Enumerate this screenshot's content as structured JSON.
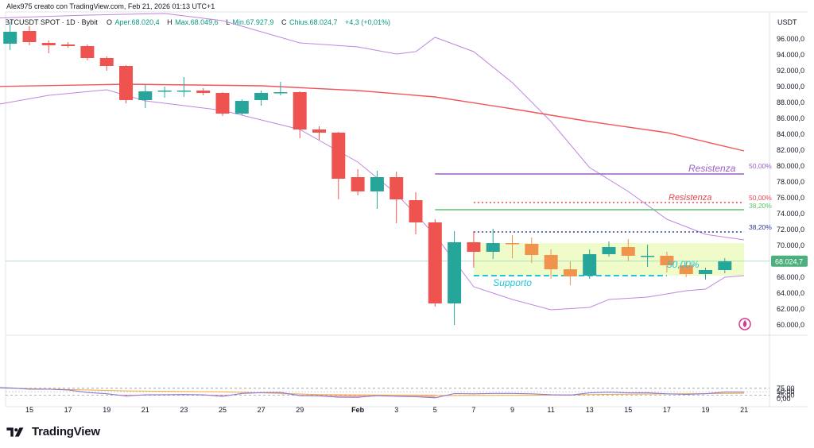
{
  "header": {
    "author_line": "Alex975 creato con TradingView.com, Feb 21, 2026 01:13 UTC+1",
    "symbol_line": "BTCUSDT SPOT · 1D · Bybit",
    "ohlc": [
      {
        "label": "O",
        "value": "Aper.68.020,4"
      },
      {
        "label": "H",
        "value": "Max.68.049,6"
      },
      {
        "label": "L",
        "value": "Min.67.927,9"
      },
      {
        "label": "C",
        "value": "Chius.68.024,7"
      }
    ],
    "change": "+4,3 (+0,01%)",
    "currency": "USDT"
  },
  "brand": {
    "name": "TradingView"
  },
  "colors": {
    "up": "#26a69a",
    "down": "#ef5350",
    "orange": "#f0934d",
    "ma_red": "#f2545b",
    "bollinger": "#c086e0",
    "rsi": "#8a79d6",
    "rsi_ma": "#f7a93b",
    "support_zone": "#eaf9b5",
    "support": "#25c5d9",
    "resist_purple": "#9c5fc4",
    "resist_red": "#e0464e",
    "green_line": "#5cc46a",
    "blue_line": "#2c3d99",
    "axis_text": "#131722",
    "price_badge": "#4caf7d"
  },
  "chart_data": {
    "type": "candlestick",
    "price_axis": {
      "ticks": [
        60000,
        62000,
        64000,
        66000,
        68000,
        70000,
        72000,
        74000,
        76000,
        78000,
        80000,
        82000,
        84000,
        86000,
        88000,
        90000,
        92000,
        94000,
        96000
      ],
      "labels": [
        "60.000,0",
        "62.000,0",
        "64.000,0",
        "66.000,0",
        "68.000,0",
        "70.000,0",
        "72.000,0",
        "74.000,0",
        "76.000,0",
        "78.000,0",
        "80.000,0",
        "82.000,0",
        "84.000,0",
        "86.000,0",
        "88.000,0",
        "90.000,0",
        "92.000,0",
        "94.000,0",
        "96.000,0"
      ],
      "current_price": 68024.7,
      "current_label": "68.024,7"
    },
    "x_axis": {
      "labels": [
        {
          "date": "2026-01-15",
          "text": "15"
        },
        {
          "date": "2026-01-17",
          "text": "17"
        },
        {
          "date": "2026-01-19",
          "text": "19"
        },
        {
          "date": "2026-01-21",
          "text": "21"
        },
        {
          "date": "2026-01-23",
          "text": "23"
        },
        {
          "date": "2026-01-25",
          "text": "25"
        },
        {
          "date": "2026-01-27",
          "text": "27"
        },
        {
          "date": "2026-01-29",
          "text": "29"
        },
        {
          "date": "2026-02-01",
          "text": "Feb"
        },
        {
          "date": "2026-02-03",
          "text": "3"
        },
        {
          "date": "2026-02-05",
          "text": "5"
        },
        {
          "date": "2026-02-07",
          "text": "7"
        },
        {
          "date": "2026-02-09",
          "text": "9"
        },
        {
          "date": "2026-02-11",
          "text": "11"
        },
        {
          "date": "2026-02-13",
          "text": "13"
        },
        {
          "date": "2026-02-15",
          "text": "15"
        },
        {
          "date": "2026-02-17",
          "text": "17"
        },
        {
          "date": "2026-02-19",
          "text": "19"
        },
        {
          "date": "2026-02-21",
          "text": "21"
        }
      ]
    },
    "candles": [
      {
        "date": "2026-01-14",
        "open": 95400,
        "high": 98200,
        "low": 94600,
        "close": 96900,
        "color": "up"
      },
      {
        "date": "2026-01-15",
        "open": 97000,
        "high": 97600,
        "low": 95200,
        "close": 95600,
        "color": "down"
      },
      {
        "date": "2026-01-16",
        "open": 95500,
        "high": 95800,
        "low": 94200,
        "close": 95200,
        "color": "down"
      },
      {
        "date": "2026-01-17",
        "open": 95300,
        "high": 95600,
        "low": 94900,
        "close": 95100,
        "color": "down"
      },
      {
        "date": "2026-01-18",
        "open": 95100,
        "high": 95300,
        "low": 93300,
        "close": 93600,
        "color": "down"
      },
      {
        "date": "2026-01-19",
        "open": 93600,
        "high": 93800,
        "low": 92000,
        "close": 92600,
        "color": "down"
      },
      {
        "date": "2026-01-20",
        "open": 92600,
        "high": 92700,
        "low": 87900,
        "close": 88300,
        "color": "down"
      },
      {
        "date": "2026-01-21",
        "open": 88300,
        "high": 90200,
        "low": 87300,
        "close": 89400,
        "color": "up"
      },
      {
        "date": "2026-01-22",
        "open": 89400,
        "high": 90000,
        "low": 88600,
        "close": 89500,
        "color": "up"
      },
      {
        "date": "2026-01-23",
        "open": 89500,
        "high": 91200,
        "low": 88700,
        "close": 89500,
        "color": "up"
      },
      {
        "date": "2026-01-24",
        "open": 89500,
        "high": 89800,
        "low": 88900,
        "close": 89200,
        "color": "down"
      },
      {
        "date": "2026-01-25",
        "open": 89200,
        "high": 89300,
        "low": 86300,
        "close": 86600,
        "color": "down"
      },
      {
        "date": "2026-01-26",
        "open": 86600,
        "high": 88400,
        "low": 86400,
        "close": 88200,
        "color": "up"
      },
      {
        "date": "2026-01-27",
        "open": 88300,
        "high": 89500,
        "low": 87600,
        "close": 89200,
        "color": "up"
      },
      {
        "date": "2026-01-28",
        "open": 89200,
        "high": 90600,
        "low": 88900,
        "close": 89300,
        "color": "up"
      },
      {
        "date": "2026-01-29",
        "open": 89300,
        "high": 89400,
        "low": 83500,
        "close": 84600,
        "color": "down"
      },
      {
        "date": "2026-01-30",
        "open": 84600,
        "high": 85000,
        "low": 83300,
        "close": 84200,
        "color": "down"
      },
      {
        "date": "2026-01-31",
        "open": 84200,
        "high": 84300,
        "low": 75800,
        "close": 78400,
        "color": "down"
      },
      {
        "date": "2026-02-01",
        "open": 78600,
        "high": 79600,
        "low": 76300,
        "close": 76800,
        "color": "down"
      },
      {
        "date": "2026-02-02",
        "open": 76800,
        "high": 79400,
        "low": 74600,
        "close": 78600,
        "color": "up"
      },
      {
        "date": "2026-02-03",
        "open": 78600,
        "high": 79300,
        "low": 72800,
        "close": 75800,
        "color": "down"
      },
      {
        "date": "2026-02-04",
        "open": 75700,
        "high": 76700,
        "low": 71400,
        "close": 72900,
        "color": "down"
      },
      {
        "date": "2026-02-05",
        "open": 72900,
        "high": 73300,
        "low": 62300,
        "close": 62700,
        "color": "down"
      },
      {
        "date": "2026-02-06",
        "open": 62700,
        "high": 71800,
        "low": 60000,
        "close": 70400,
        "color": "up"
      },
      {
        "date": "2026-02-07",
        "open": 70400,
        "high": 71800,
        "low": 67200,
        "close": 69200,
        "color": "down"
      },
      {
        "date": "2026-02-08",
        "open": 69200,
        "high": 72100,
        "low": 68300,
        "close": 70300,
        "color": "up"
      },
      {
        "date": "2026-02-09",
        "open": 70300,
        "high": 71300,
        "low": 68400,
        "close": 70200,
        "color": "orange"
      },
      {
        "date": "2026-02-10",
        "open": 70200,
        "high": 71000,
        "low": 67800,
        "close": 68800,
        "color": "orange"
      },
      {
        "date": "2026-02-11",
        "open": 68800,
        "high": 69500,
        "low": 65800,
        "close": 67000,
        "color": "orange"
      },
      {
        "date": "2026-02-12",
        "open": 67000,
        "high": 68000,
        "low": 65000,
        "close": 66100,
        "color": "orange"
      },
      {
        "date": "2026-02-13",
        "open": 66200,
        "high": 69500,
        "low": 65800,
        "close": 68900,
        "color": "up"
      },
      {
        "date": "2026-02-14",
        "open": 68900,
        "high": 70500,
        "low": 68600,
        "close": 69800,
        "color": "up"
      },
      {
        "date": "2026-02-15",
        "open": 69800,
        "high": 70800,
        "low": 68000,
        "close": 68700,
        "color": "orange"
      },
      {
        "date": "2026-02-16",
        "open": 68700,
        "high": 70100,
        "low": 67300,
        "close": 68700,
        "color": "up"
      },
      {
        "date": "2026-02-17",
        "open": 68700,
        "high": 69200,
        "low": 66600,
        "close": 67500,
        "color": "orange"
      },
      {
        "date": "2026-02-18",
        "open": 67500,
        "high": 68100,
        "low": 66000,
        "close": 66400,
        "color": "orange"
      },
      {
        "date": "2026-02-19",
        "open": 66400,
        "high": 67200,
        "low": 65700,
        "close": 66900,
        "color": "up"
      },
      {
        "date": "2026-02-20",
        "open": 66900,
        "high": 68400,
        "low": 66500,
        "close": 68000,
        "color": "up"
      }
    ],
    "ma_line": [
      {
        "date": "2026-01-13",
        "value": 90000
      },
      {
        "date": "2026-01-20",
        "value": 90300
      },
      {
        "date": "2026-01-27",
        "value": 90100
      },
      {
        "date": "2026-02-01",
        "value": 89500
      },
      {
        "date": "2026-02-05",
        "value": 88700
      },
      {
        "date": "2026-02-09",
        "value": 87200
      },
      {
        "date": "2026-02-13",
        "value": 85600
      },
      {
        "date": "2026-02-17",
        "value": 84200
      },
      {
        "date": "2026-02-21",
        "value": 81900
      }
    ],
    "bollinger_upper": [
      {
        "date": "2026-01-13",
        "value": 98600
      },
      {
        "date": "2026-01-18",
        "value": 99000
      },
      {
        "date": "2026-01-22",
        "value": 99200
      },
      {
        "date": "2026-01-25",
        "value": 98300
      },
      {
        "date": "2026-01-29",
        "value": 95500
      },
      {
        "date": "2026-02-01",
        "value": 95000
      },
      {
        "date": "2026-02-03",
        "value": 94100
      },
      {
        "date": "2026-02-04",
        "value": 94400
      },
      {
        "date": "2026-02-05",
        "value": 96200
      },
      {
        "date": "2026-02-07",
        "value": 94400
      },
      {
        "date": "2026-02-09",
        "value": 90500
      },
      {
        "date": "2026-02-11",
        "value": 85600
      },
      {
        "date": "2026-02-13",
        "value": 79800
      },
      {
        "date": "2026-02-15",
        "value": 76800
      },
      {
        "date": "2026-02-17",
        "value": 73300
      },
      {
        "date": "2026-02-19",
        "value": 71400
      },
      {
        "date": "2026-02-21",
        "value": 70700
      }
    ],
    "bollinger_lower": [
      {
        "date": "2026-01-13",
        "value": 87600
      },
      {
        "date": "2026-01-16",
        "value": 88900
      },
      {
        "date": "2026-01-19",
        "value": 89600
      },
      {
        "date": "2026-01-21",
        "value": 88200
      },
      {
        "date": "2026-01-25",
        "value": 87000
      },
      {
        "date": "2026-01-29",
        "value": 84600
      },
      {
        "date": "2026-02-01",
        "value": 80500
      },
      {
        "date": "2026-02-03",
        "value": 76500
      },
      {
        "date": "2026-02-05",
        "value": 71300
      },
      {
        "date": "2026-02-07",
        "value": 64800
      },
      {
        "date": "2026-02-09",
        "value": 63200
      },
      {
        "date": "2026-02-11",
        "value": 61900
      },
      {
        "date": "2026-02-13",
        "value": 62200
      },
      {
        "date": "2026-02-14",
        "value": 63200
      },
      {
        "date": "2026-02-16",
        "value": 63500
      },
      {
        "date": "2026-02-18",
        "value": 64300
      },
      {
        "date": "2026-02-19",
        "value": 64500
      },
      {
        "date": "2026-02-20",
        "value": 66000
      },
      {
        "date": "2026-02-21",
        "value": 66200
      }
    ],
    "support_zone": {
      "start": "2026-02-07",
      "end": "2026-02-21",
      "low": 66200,
      "high": 70300
    },
    "levels": [
      {
        "name": "resistance-purple",
        "value": 79000,
        "start": "2026-02-05",
        "end": "2026-02-21",
        "style": "solid",
        "color": "#9c5fc4"
      },
      {
        "name": "resistance-red",
        "value": 75400,
        "start": "2026-02-07",
        "end": "2026-02-21",
        "style": "dotted",
        "color": "#e0464e"
      },
      {
        "name": "green-level",
        "value": 74500,
        "start": "2026-02-05",
        "end": "2026-02-21",
        "style": "solid",
        "color": "#5cc46a"
      },
      {
        "name": "blue-level",
        "value": 71700,
        "start": "2026-02-07",
        "end": "2026-02-21",
        "style": "dotted",
        "color": "#2c3d99"
      },
      {
        "name": "support",
        "value": 66200,
        "start": "2026-02-07",
        "end": "2026-02-17",
        "style": "dashed",
        "color": "#25c5d9"
      }
    ],
    "annotations": [
      {
        "text": "Resistenza",
        "date": "2026-02-17",
        "price": 79000,
        "color": "#9c5fc4"
      },
      {
        "text": "Resistenza",
        "date": "2026-02-17",
        "price": 75400,
        "color": "#e0464e"
      },
      {
        "text": "Supporto",
        "date": "2026-02-08",
        "price": 64600,
        "color": "#25c5d9"
      },
      {
        "text": "50,00%",
        "side": "right",
        "price": 80000,
        "color": "#9c5fc4"
      },
      {
        "text": "50,00%",
        "side": "right",
        "price": 76000,
        "color": "#e0464e"
      },
      {
        "text": "38,20%",
        "side": "right",
        "price": 75000,
        "color": "#5cc46a"
      },
      {
        "text": "38,20%",
        "side": "right",
        "price": 72300,
        "color": "#2c3d99"
      },
      {
        "text": "50,00%",
        "date": "2026-02-17",
        "price": 66900,
        "color": "#25c5d9"
      }
    ],
    "rsi": {
      "levels": [
        75,
        70,
        50,
        30,
        25
      ],
      "tick_labels": [
        "75,00",
        "50,00",
        "25,00",
        "0,00"
      ],
      "tick_values": [
        75,
        50,
        25,
        0
      ],
      "values": [
        {
          "date": "2026-01-13",
          "value": 82
        },
        {
          "date": "2026-01-14",
          "value": 78
        },
        {
          "date": "2026-01-15",
          "value": 69
        },
        {
          "date": "2026-01-16",
          "value": 68
        },
        {
          "date": "2026-01-17",
          "value": 63
        },
        {
          "date": "2026-01-18",
          "value": 45
        },
        {
          "date": "2026-01-19",
          "value": 36
        },
        {
          "date": "2026-01-20",
          "value": 20
        },
        {
          "date": "2026-01-21",
          "value": 28
        },
        {
          "date": "2026-01-22",
          "value": 29
        },
        {
          "date": "2026-01-23",
          "value": 30
        },
        {
          "date": "2026-01-24",
          "value": 28
        },
        {
          "date": "2026-01-25",
          "value": 17
        },
        {
          "date": "2026-01-26",
          "value": 38
        },
        {
          "date": "2026-01-27",
          "value": 44
        },
        {
          "date": "2026-01-28",
          "value": 45
        },
        {
          "date": "2026-01-29",
          "value": 22
        },
        {
          "date": "2026-01-30",
          "value": 21
        },
        {
          "date": "2026-01-31",
          "value": 11
        },
        {
          "date": "2026-02-01",
          "value": 10
        },
        {
          "date": "2026-02-02",
          "value": 22
        },
        {
          "date": "2026-02-03",
          "value": 17
        },
        {
          "date": "2026-02-04",
          "value": 14
        },
        {
          "date": "2026-02-05",
          "value": 7
        },
        {
          "date": "2026-02-06",
          "value": 37
        },
        {
          "date": "2026-02-07",
          "value": 35
        },
        {
          "date": "2026-02-08",
          "value": 38
        },
        {
          "date": "2026-02-09",
          "value": 38
        },
        {
          "date": "2026-02-10",
          "value": 35
        },
        {
          "date": "2026-02-11",
          "value": 29
        },
        {
          "date": "2026-02-12",
          "value": 26
        },
        {
          "date": "2026-02-13",
          "value": 42
        },
        {
          "date": "2026-02-14",
          "value": 47
        },
        {
          "date": "2026-02-15",
          "value": 42
        },
        {
          "date": "2026-02-16",
          "value": 43
        },
        {
          "date": "2026-02-17",
          "value": 35
        },
        {
          "date": "2026-02-18",
          "value": 31
        },
        {
          "date": "2026-02-19",
          "value": 36
        },
        {
          "date": "2026-02-20",
          "value": 48
        },
        {
          "date": "2026-02-21",
          "value": 48
        }
      ],
      "ma": [
        {
          "date": "2026-01-13",
          "value": 80
        },
        {
          "date": "2026-01-15",
          "value": 72
        },
        {
          "date": "2026-01-20",
          "value": 56
        },
        {
          "date": "2026-01-25",
          "value": 50
        },
        {
          "date": "2026-01-30",
          "value": 30
        },
        {
          "date": "2026-02-05",
          "value": 23
        },
        {
          "date": "2026-02-10",
          "value": 25
        },
        {
          "date": "2026-02-15",
          "value": 33
        },
        {
          "date": "2026-02-21",
          "value": 39
        }
      ]
    }
  }
}
